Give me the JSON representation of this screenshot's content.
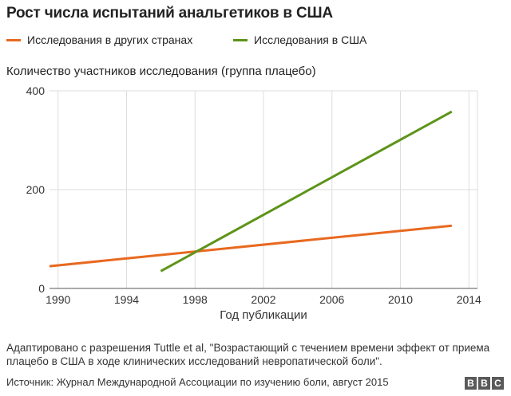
{
  "header": {
    "title": "Рост числа испытаний анальгетиков в США"
  },
  "legend": [
    {
      "label": "Исследования в других странах",
      "color": "#e8691f"
    },
    {
      "label": "Исследования в США",
      "color": "#5d9419"
    }
  ],
  "chart_data": {
    "type": "line",
    "ylabel": "Количество участников исследования (группа плацебо)",
    "xlabel": "Год публикации",
    "xlim": [
      1989.5,
      2014.5
    ],
    "ylim": [
      0,
      400
    ],
    "x_ticks": [
      "1990",
      "1994",
      "1998",
      "2002",
      "2006",
      "2010",
      "2014"
    ],
    "y_ticks": [
      "0",
      "200",
      "400"
    ],
    "x_tick_values": [
      1990,
      1994,
      1998,
      2002,
      2006,
      2010,
      2014
    ],
    "y_tick_values": [
      0,
      200,
      400
    ],
    "grid": true,
    "series": [
      {
        "name": "Исследования в других странах",
        "color": "#e8691f",
        "x": [
          1989.5,
          2013
        ],
        "y": [
          45,
          127
        ]
      },
      {
        "name": "Исследования в США",
        "color": "#5d9419",
        "x": [
          1996,
          2013
        ],
        "y": [
          35,
          358
        ]
      }
    ]
  },
  "footer": {
    "note": "Адаптировано с разрешения Tuttle et al, \"Возрастающий с течением времени эффект от приема плацебо в США в ходе клинических исследований невропатической боли\".",
    "source": "Источник: Журнал Международной Ассоциации по изучению боли, август 2015",
    "logo_letters": [
      "B",
      "B",
      "C"
    ]
  }
}
